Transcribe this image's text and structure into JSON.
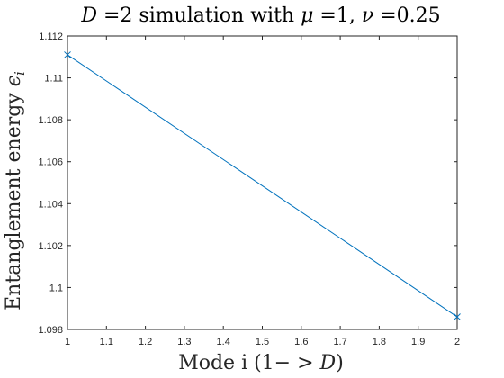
{
  "chart_data": {
    "type": "line",
    "title": "D =2 simulation with μ =1, ν =0.25",
    "xlabel": "Mode i (1− > D)",
    "ylabel": "Entanglement energy ϵ_i",
    "xlim": [
      1,
      2
    ],
    "ylim": [
      1.098,
      1.112
    ],
    "x_ticks": [
      "1",
      "1.1",
      "1.2",
      "1.3",
      "1.4",
      "1.5",
      "1.6",
      "1.7",
      "1.8",
      "1.9",
      "2"
    ],
    "y_ticks": [
      "1.098",
      "1.1",
      "1.102",
      "1.104",
      "1.106",
      "1.108",
      "1.11",
      "1.112"
    ],
    "grid": false,
    "series": [
      {
        "x": [
          1,
          2
        ],
        "y": [
          1.1111,
          1.0986
        ],
        "marker": "x",
        "color": "#0072BD"
      }
    ]
  }
}
